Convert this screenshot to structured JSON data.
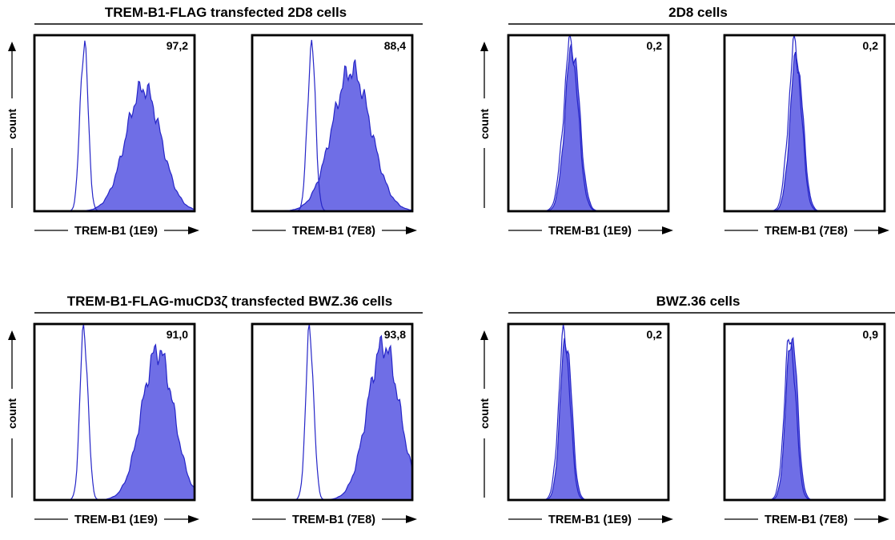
{
  "groups": [
    {
      "title": "TREM-B1-FLAG transfected 2D8 cells",
      "ylabel": "count"
    },
    {
      "title": "2D8 cells",
      "ylabel": "count"
    },
    {
      "title": "TREM-B1-FLAG-muCD3ζ  transfected BWZ.36 cells",
      "ylabel": "count"
    },
    {
      "title": "BWZ.36 cells",
      "ylabel": "count"
    }
  ],
  "chart_data": [
    {
      "type": "area",
      "group": "TREM-B1-FLAG transfected 2D8 cells",
      "xlabel": "TREM-B1 (1E9)",
      "ylabel": "count",
      "value_label": "97,2",
      "series": [
        {
          "role": "control (open)",
          "peak_x": 0.31,
          "width": 0.025,
          "peak": 0.97
        },
        {
          "role": "stained (filled)",
          "peak_x": 0.68,
          "width": 0.11,
          "peak": 0.7
        }
      ]
    },
    {
      "type": "area",
      "group": "TREM-B1-FLAG transfected 2D8 cells",
      "xlabel": "TREM-B1 (7E8)",
      "ylabel": "count",
      "value_label": "88,4",
      "series": [
        {
          "role": "control (open)",
          "peak_x": 0.37,
          "width": 0.025,
          "peak": 0.95
        },
        {
          "role": "stained (filled)",
          "peak_x": 0.62,
          "width": 0.12,
          "peak": 0.8
        }
      ]
    },
    {
      "type": "area",
      "group": "2D8 cells",
      "xlabel": "TREM-B1 (1E9)",
      "ylabel": "count",
      "value_label": "0,2",
      "series": [
        {
          "role": "control (open)",
          "peak_x": 0.39,
          "width": 0.045,
          "peak": 0.96
        },
        {
          "role": "stained (filled)",
          "peak_x": 0.4,
          "width": 0.045,
          "peak": 0.94
        }
      ]
    },
    {
      "type": "area",
      "group": "2D8 cells",
      "xlabel": "TREM-B1 (7E8)",
      "ylabel": "count",
      "value_label": "0,2",
      "series": [
        {
          "role": "control (open)",
          "peak_x": 0.44,
          "width": 0.04,
          "peak": 0.95
        },
        {
          "role": "stained (filled)",
          "peak_x": 0.45,
          "width": 0.04,
          "peak": 0.88
        }
      ]
    },
    {
      "type": "area",
      "group": "TREM-B1-FLAG-muCD3ζ  transfected BWZ.36 cells",
      "xlabel": "TREM-B1 (1E9)",
      "ylabel": "count",
      "value_label": "91,0",
      "series": [
        {
          "role": "control (open)",
          "peak_x": 0.31,
          "width": 0.025,
          "peak": 0.98
        },
        {
          "role": "stained (filled)",
          "peak_x": 0.77,
          "width": 0.1,
          "peak": 0.85
        }
      ]
    },
    {
      "type": "area",
      "group": "TREM-B1-FLAG-muCD3ζ  transfected BWZ.36 cells",
      "xlabel": "TREM-B1 (7E8)",
      "ylabel": "count",
      "value_label": "93,8",
      "series": [
        {
          "role": "control (open)",
          "peak_x": 0.36,
          "width": 0.025,
          "peak": 0.96
        },
        {
          "role": "stained (filled)",
          "peak_x": 0.82,
          "width": 0.1,
          "peak": 0.88
        }
      ]
    },
    {
      "type": "area",
      "group": "BWZ.36 cells",
      "xlabel": "TREM-B1 (1E9)",
      "ylabel": "count",
      "value_label": "0,2",
      "series": [
        {
          "role": "control (open)",
          "peak_x": 0.35,
          "width": 0.035,
          "peak": 0.95
        },
        {
          "role": "stained (filled)",
          "peak_x": 0.36,
          "width": 0.035,
          "peak": 0.93
        }
      ]
    },
    {
      "type": "area",
      "group": "BWZ.36 cells",
      "xlabel": "TREM-B1 (7E8)",
      "ylabel": "count",
      "value_label": "0,9",
      "series": [
        {
          "role": "control (open)",
          "peak_x": 0.41,
          "width": 0.035,
          "peak": 0.93
        },
        {
          "role": "stained (filled)",
          "peak_x": 0.42,
          "width": 0.035,
          "peak": 0.95
        }
      ]
    }
  ]
}
